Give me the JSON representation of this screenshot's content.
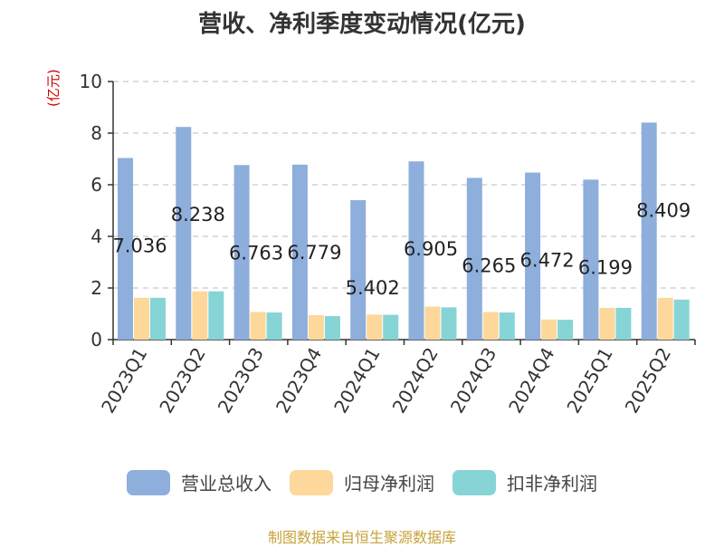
{
  "title": "营收、净利季度变动情况(亿元)",
  "unit_label": "(亿元)",
  "source": "制图数据来自恒生聚源数据库",
  "chart_data": {
    "type": "bar",
    "title": "营收、净利季度变动情况(亿元)",
    "xlabel": "",
    "ylabel": "(亿元)",
    "ylim": [
      0,
      10
    ],
    "yticks": [
      0,
      2,
      4,
      6,
      8,
      10
    ],
    "grid": true,
    "legend_position": "bottom",
    "categories": [
      "2023Q1",
      "2023Q2",
      "2023Q3",
      "2023Q4",
      "2024Q1",
      "2024Q2",
      "2024Q3",
      "2024Q4",
      "2025Q1",
      "2025Q2"
    ],
    "series": [
      {
        "name": "营业总收入",
        "color": "#8eaedb",
        "values": [
          7.036,
          8.238,
          6.763,
          6.779,
          5.402,
          6.905,
          6.265,
          6.472,
          6.199,
          8.409
        ],
        "labels": [
          "7.036",
          "8.238",
          "6.763",
          "6.779",
          "5.402",
          "6.905",
          "6.265",
          "6.472",
          "6.199",
          "8.409"
        ]
      },
      {
        "name": "归母净利润",
        "color": "#fdd89a",
        "values": [
          1.62,
          1.87,
          1.07,
          0.95,
          0.97,
          1.28,
          1.07,
          0.78,
          1.23,
          1.62
        ]
      },
      {
        "name": "扣非净利润",
        "color": "#86d4d6",
        "values": [
          1.62,
          1.87,
          1.05,
          0.91,
          0.96,
          1.25,
          1.05,
          0.77,
          1.23,
          1.55
        ]
      }
    ]
  }
}
